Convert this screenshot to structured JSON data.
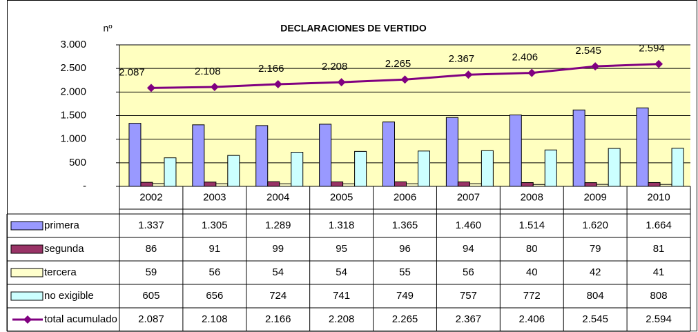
{
  "chart_data": {
    "type": "bar",
    "title": "DECLARACIONES DE VERTIDO",
    "y_label": "nº",
    "categories": [
      "2002",
      "2003",
      "2004",
      "2005",
      "2006",
      "2007",
      "2008",
      "2009",
      "2010"
    ],
    "series": [
      {
        "name": "primera",
        "color": "#9999ff",
        "values": [
          1337,
          1305,
          1289,
          1318,
          1365,
          1460,
          1514,
          1620,
          1664
        ],
        "value_labels": [
          "1.337",
          "1.305",
          "1.289",
          "1.318",
          "1.365",
          "1.460",
          "1.514",
          "1.620",
          "1.664"
        ]
      },
      {
        "name": "segunda",
        "color": "#993366",
        "values": [
          86,
          91,
          99,
          95,
          96,
          94,
          80,
          79,
          81
        ]
      },
      {
        "name": "tercera",
        "color": "#ffffcc",
        "values": [
          59,
          56,
          54,
          54,
          55,
          56,
          40,
          42,
          41
        ]
      },
      {
        "name": "no exigible",
        "color": "#ccffff",
        "values": [
          605,
          656,
          724,
          741,
          749,
          757,
          772,
          804,
          808
        ]
      },
      {
        "name": "total acumulado",
        "type": "line",
        "color": "#800080",
        "values": [
          2087,
          2108,
          2166,
          2208,
          2265,
          2367,
          2406,
          2545,
          2594
        ],
        "value_labels": [
          "2.087",
          "2.108",
          "2.166",
          "2.208",
          "2.265",
          "2.367",
          "2.406",
          "2.545",
          "2.594"
        ]
      }
    ],
    "ylim": [
      0,
      3000
    ],
    "yticks": [
      {
        "value": 0,
        "label": "-"
      },
      500,
      {
        "value": 1000,
        "label": "1.000"
      },
      {
        "value": 1500,
        "label": "1.500"
      },
      {
        "value": 2000,
        "label": "2.000"
      },
      {
        "value": 2500,
        "label": "2.500"
      },
      {
        "value": 3000,
        "label": "3.000"
      }
    ],
    "grid": true,
    "plot_background": "#ffffc0"
  }
}
